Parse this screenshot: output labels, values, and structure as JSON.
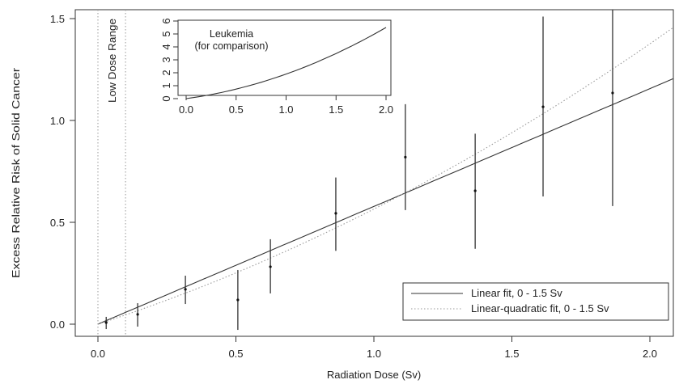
{
  "chart_data": {
    "type": "scatter",
    "xlabel": "Radiation Dose (Sv)",
    "ylabel": "Excess Relative Risk of Solid Cancer",
    "xlim": [
      -0.08,
      2.085
    ],
    "ylim": [
      -0.06,
      1.55
    ],
    "xticks": [
      "0.0",
      "0.5",
      "1.0",
      "1.5",
      "2.0"
    ],
    "xtick_values": [
      0,
      0.5,
      1,
      1.5,
      2
    ],
    "yticks": [
      "0.0",
      "0.5",
      "1.0",
      "1.5"
    ],
    "ytick_values": [
      0,
      0.5,
      1,
      1.5
    ],
    "annotation": "Low Dose Range",
    "low_dose_range": [
      0,
      0.1
    ],
    "points": [
      {
        "x": 0.03,
        "y": 0.008,
        "lo": -0.024,
        "hi": 0.036
      },
      {
        "x": 0.144,
        "y": 0.048,
        "lo": -0.012,
        "hi": 0.103
      },
      {
        "x": 0.317,
        "y": 0.171,
        "lo": 0.099,
        "hi": 0.238
      },
      {
        "x": 0.507,
        "y": 0.119,
        "lo": -0.028,
        "hi": 0.266
      },
      {
        "x": 0.625,
        "y": 0.282,
        "lo": 0.151,
        "hi": 0.417
      },
      {
        "x": 0.862,
        "y": 0.544,
        "lo": 0.36,
        "hi": 0.72
      },
      {
        "x": 1.114,
        "y": 0.82,
        "lo": 0.56,
        "hi": 1.08
      },
      {
        "x": 1.367,
        "y": 0.655,
        "lo": 0.37,
        "hi": 0.935
      },
      {
        "x": 1.613,
        "y": 1.067,
        "lo": 0.627,
        "hi": 1.51
      },
      {
        "x": 1.865,
        "y": 1.135,
        "lo": 0.58,
        "hi": 1.6
      }
    ],
    "fits": [
      {
        "name": "Linear fit, 0 - 1.5 Sv",
        "a": 0.578,
        "b": 0,
        "style": "solid"
      },
      {
        "name": "Linear-quadratic fit, 0 - 1.5 Sv",
        "a": 0.442,
        "b": 0.123,
        "style": "dotted"
      }
    ],
    "legend": "bottom-right",
    "inset": {
      "title_line1": "Leukemia",
      "title_line2": "(for comparison)",
      "xlim": [
        -0.08,
        2.08
      ],
      "ylim": [
        -0.2,
        6.2
      ],
      "xticks": [
        "0.0",
        "0.5",
        "1.0",
        "1.5",
        "2.0"
      ],
      "xtick_values": [
        0,
        0.5,
        1,
        1.5,
        2
      ],
      "yticks": [
        "0",
        "1",
        "2",
        "3",
        "4",
        "5",
        "6"
      ],
      "ytick_values": [
        0,
        1,
        2,
        3,
        4,
        5,
        6
      ],
      "curve": {
        "a": 1.05,
        "b": 0.85
      }
    }
  }
}
